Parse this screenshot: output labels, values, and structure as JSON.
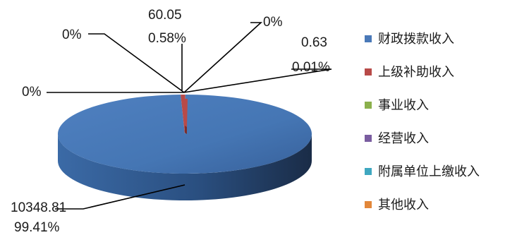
{
  "chart_data": {
    "type": "pie",
    "title": "",
    "style": "3d",
    "legend_position": "right",
    "series": [
      {
        "name": "财政拨款收入",
        "value": 10348.81,
        "percent": "99.41%",
        "color": "#4a79b8",
        "value_label": "10348.81",
        "percent_label": "99.41%"
      },
      {
        "name": "上级补助收入",
        "value": 60.05,
        "percent": "0.58%",
        "color": "#b84a48",
        "value_label": "60.05",
        "percent_label": "0.58%"
      },
      {
        "name": "事业收入",
        "value": 0,
        "percent": "0%",
        "color": "#8bb04c",
        "value_label": "",
        "percent_label": "0%"
      },
      {
        "name": "经营收入",
        "value": 0,
        "percent": "0%",
        "color": "#7a5da0",
        "value_label": "",
        "percent_label": "0%"
      },
      {
        "name": "附属单位上缴收入",
        "value": 0,
        "percent": "0%",
        "color": "#3fa7c0",
        "value_label": "",
        "percent_label": "0%"
      },
      {
        "name": "其他收入",
        "value": 0.63,
        "percent": "0.01%",
        "color": "#e2873a",
        "value_label": "0.63",
        "percent_label": "0.01%"
      }
    ]
  }
}
